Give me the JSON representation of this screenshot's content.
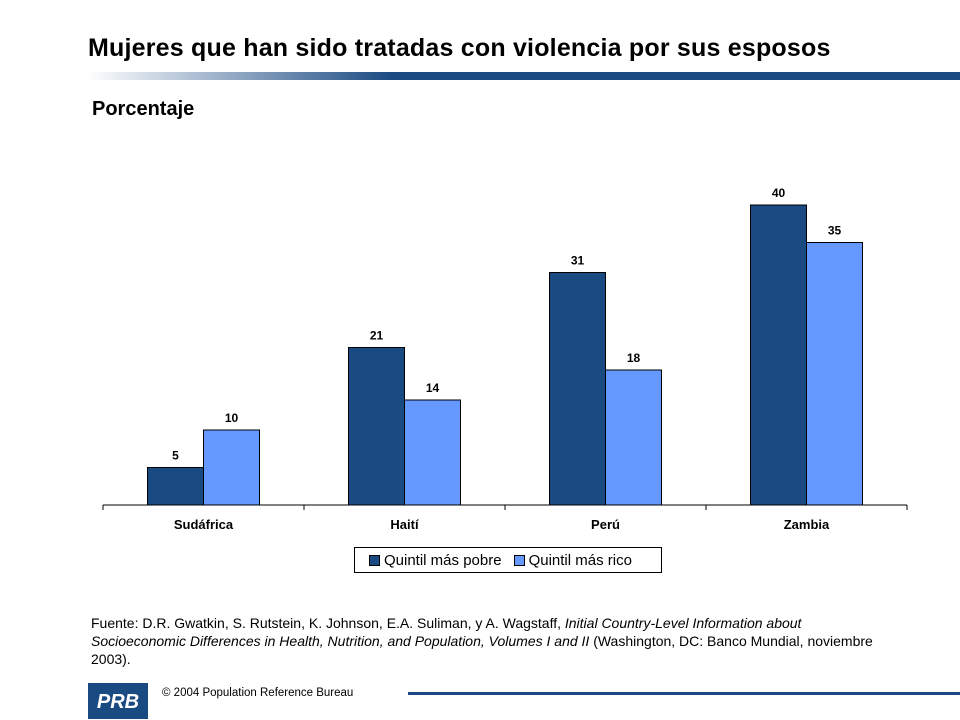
{
  "header": {
    "title": "Mujeres que han sido tratadas con violencia por sus esposos",
    "subtitle": "Porcentaje"
  },
  "colors": {
    "accent": "#1A4A82",
    "series_dark": "#1A4A82",
    "series_light": "#6699FF",
    "rule_start": "#FFFFFF",
    "rule_end": "#1A4A82"
  },
  "chart_data": {
    "type": "bar",
    "title": "",
    "xlabel": "",
    "ylabel": "",
    "categories": [
      "Sudáfrica",
      "Haití",
      "Perú",
      "Zambia"
    ],
    "series": [
      {
        "name": "Quintil más pobre",
        "values": [
          5,
          21,
          31,
          40
        ],
        "color": "#1A4A82"
      },
      {
        "name": "Quintil más rico",
        "values": [
          10,
          14,
          18,
          35
        ],
        "color": "#6699FF"
      }
    ],
    "ylim": [
      0,
      44
    ],
    "grid": false,
    "legend_position": "bottom",
    "data_labels": true
  },
  "source": {
    "prefix": "Fuente: D.R. Gwatkin, S. Rutstein, K. Johnson, E.A. Suliman, y A. Wagstaff, ",
    "italic": "Initial Country-Level Information about Socioeconomic Differences in Health, Nutrition, and Population, Volumes I and II",
    "suffix": " (Washington, DC: Banco Mundial, noviembre 2003)."
  },
  "footer": {
    "logo_text": "PRB",
    "copyright": "© 2004 Population Reference Bureau"
  }
}
